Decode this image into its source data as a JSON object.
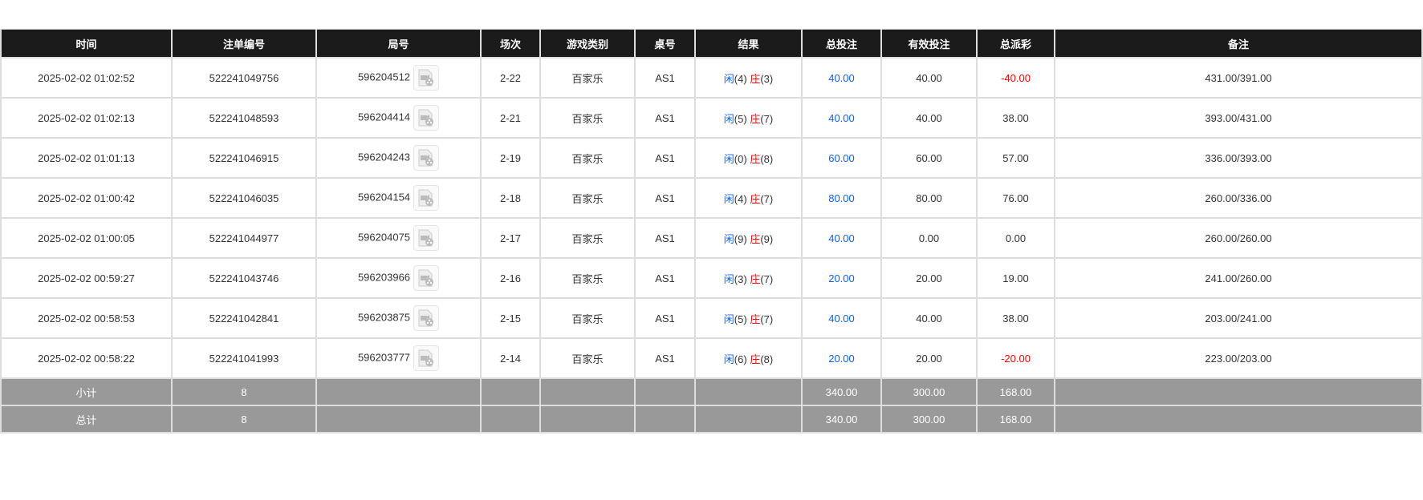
{
  "headers": [
    "时间",
    "注单编号",
    "局号",
    "场次",
    "游戏类别",
    "桌号",
    "结果",
    "总投注",
    "有效投注",
    "总派彩",
    "备注"
  ],
  "rows": [
    {
      "time": "2025-02-02 01:02:52",
      "bet_id": "522241049756",
      "round": "596204512",
      "session": "2-22",
      "game": "百家乐",
      "table": "AS1",
      "player": "闲",
      "player_pts": "(4)",
      "banker": "庄",
      "banker_pts": "(3)",
      "total": "40.00",
      "valid": "40.00",
      "payout": "-40.00",
      "payout_neg": true,
      "remark": "431.00/391.00"
    },
    {
      "time": "2025-02-02 01:02:13",
      "bet_id": "522241048593",
      "round": "596204414",
      "session": "2-21",
      "game": "百家乐",
      "table": "AS1",
      "player": "闲",
      "player_pts": "(5)",
      "banker": "庄",
      "banker_pts": "(7)",
      "total": "40.00",
      "valid": "40.00",
      "payout": "38.00",
      "payout_neg": false,
      "remark": "393.00/431.00"
    },
    {
      "time": "2025-02-02 01:01:13",
      "bet_id": "522241046915",
      "round": "596204243",
      "session": "2-19",
      "game": "百家乐",
      "table": "AS1",
      "player": "闲",
      "player_pts": "(0)",
      "banker": "庄",
      "banker_pts": "(8)",
      "total": "60.00",
      "valid": "60.00",
      "payout": "57.00",
      "payout_neg": false,
      "remark": "336.00/393.00"
    },
    {
      "time": "2025-02-02 01:00:42",
      "bet_id": "522241046035",
      "round": "596204154",
      "session": "2-18",
      "game": "百家乐",
      "table": "AS1",
      "player": "闲",
      "player_pts": "(4)",
      "banker": "庄",
      "banker_pts": "(7)",
      "total": "80.00",
      "valid": "80.00",
      "payout": "76.00",
      "payout_neg": false,
      "remark": "260.00/336.00"
    },
    {
      "time": "2025-02-02 01:00:05",
      "bet_id": "522241044977",
      "round": "596204075",
      "session": "2-17",
      "game": "百家乐",
      "table": "AS1",
      "player": "闲",
      "player_pts": "(9)",
      "banker": "庄",
      "banker_pts": "(9)",
      "total": "40.00",
      "valid": "0.00",
      "payout": "0.00",
      "payout_neg": false,
      "remark": "260.00/260.00"
    },
    {
      "time": "2025-02-02 00:59:27",
      "bet_id": "522241043746",
      "round": "596203966",
      "session": "2-16",
      "game": "百家乐",
      "table": "AS1",
      "player": "闲",
      "player_pts": "(3)",
      "banker": "庄",
      "banker_pts": "(7)",
      "total": "20.00",
      "valid": "20.00",
      "payout": "19.00",
      "payout_neg": false,
      "remark": "241.00/260.00"
    },
    {
      "time": "2025-02-02 00:58:53",
      "bet_id": "522241042841",
      "round": "596203875",
      "session": "2-15",
      "game": "百家乐",
      "table": "AS1",
      "player": "闲",
      "player_pts": "(5)",
      "banker": "庄",
      "banker_pts": "(7)",
      "total": "40.00",
      "valid": "40.00",
      "payout": "38.00",
      "payout_neg": false,
      "remark": "203.00/241.00"
    },
    {
      "time": "2025-02-02 00:58:22",
      "bet_id": "522241041993",
      "round": "596203777",
      "session": "2-14",
      "game": "百家乐",
      "table": "AS1",
      "player": "闲",
      "player_pts": "(6)",
      "banker": "庄",
      "banker_pts": "(8)",
      "total": "20.00",
      "valid": "20.00",
      "payout": "-20.00",
      "payout_neg": true,
      "remark": "223.00/203.00"
    }
  ],
  "summary": [
    {
      "label": "小计",
      "count": "8",
      "total": "340.00",
      "valid": "300.00",
      "payout": "168.00"
    },
    {
      "label": "总计",
      "count": "8",
      "total": "340.00",
      "valid": "300.00",
      "payout": "168.00"
    }
  ],
  "colors": {
    "player": "#0a63f0",
    "banker": "#ff0000",
    "negative": "#ff0000",
    "header_bg": "#1b1b1b",
    "summary_bg": "#999999"
  },
  "icons": {
    "replay": "video-replay-icon"
  }
}
